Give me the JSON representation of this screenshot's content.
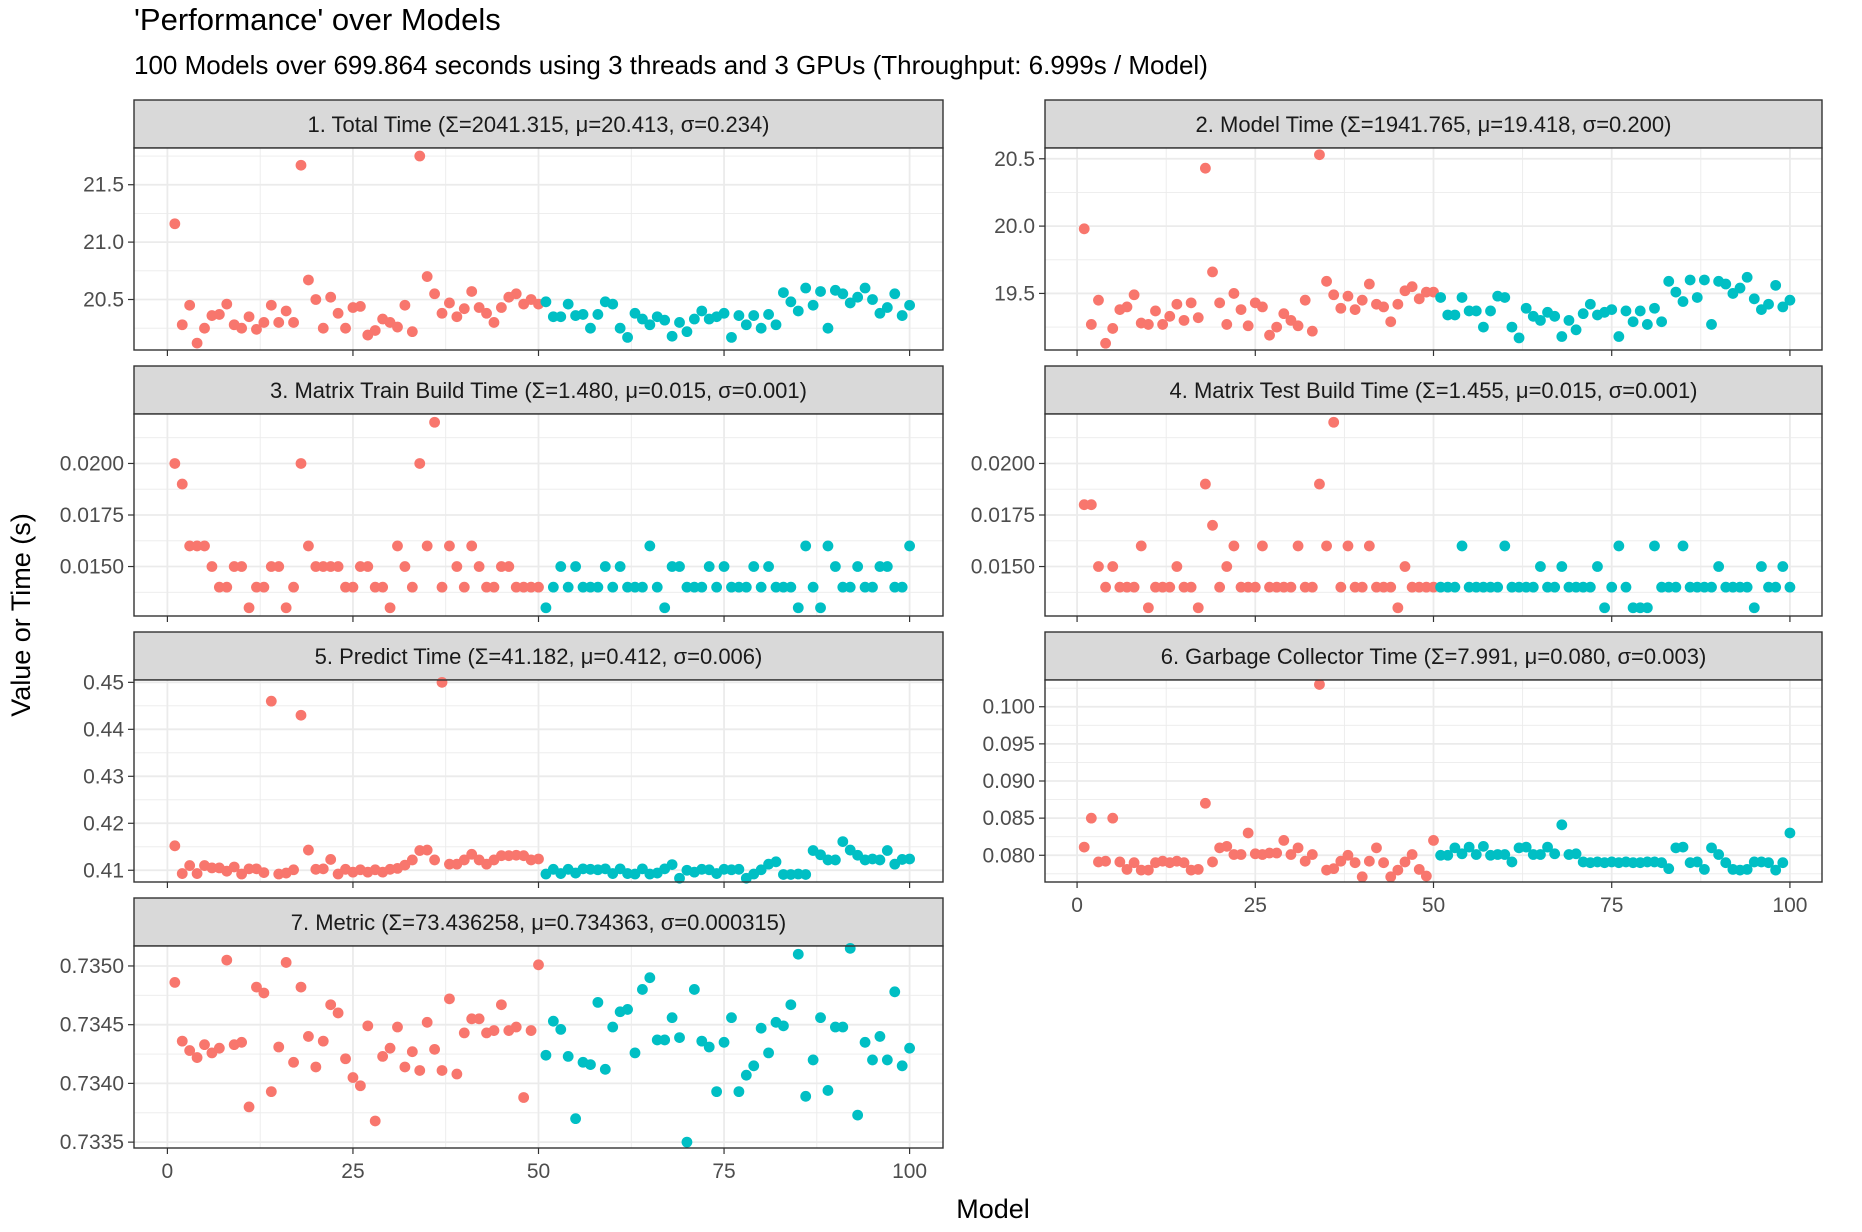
{
  "title": "'Performance' over Models",
  "subtitle": "100 Models over 699.864 seconds using 3 threads and 3 GPUs (Throughput: 6.999s / Model)",
  "x_axis_title": "Model",
  "y_axis_title": "Value or Time (s)",
  "colors": {
    "series_a": "#F8766D",
    "series_b": "#00BFC4",
    "strip_fill": "#D9D9D9",
    "grid": "#EBEBEB",
    "border": "#333333"
  },
  "chart_data": [
    {
      "type": "scatter",
      "title": "1. Total Time (Σ=2041.315, μ=20.413, σ=0.234)",
      "xlim": [
        -4.5,
        104.5
      ],
      "ylim": [
        20.06,
        21.82
      ],
      "x_ticks": [
        0,
        25,
        50,
        75,
        100
      ],
      "x_tick_labels": [
        "",
        "",
        "",
        "",
        ""
      ],
      "y_ticks": [
        20.5,
        21.0,
        21.5
      ],
      "y_tick_labels": [
        "20.5",
        "21.0",
        "21.5"
      ],
      "series": [
        {
          "values": [
            21.16,
            20.28,
            20.45,
            20.12,
            20.25,
            20.36,
            20.37,
            20.46,
            20.28,
            20.25,
            20.35,
            20.24,
            20.3,
            20.45,
            20.3,
            20.4,
            20.3,
            21.67,
            20.67,
            20.5,
            20.25,
            20.52,
            20.38,
            20.25,
            20.43,
            20.44,
            20.19,
            20.23,
            20.33,
            20.3,
            20.26,
            20.45,
            20.22,
            21.75,
            20.7,
            20.55,
            20.38,
            20.47,
            20.35,
            20.42,
            20.57,
            20.43,
            20.38,
            20.3,
            20.43,
            20.52,
            20.55,
            20.46,
            20.5,
            20.46
          ]
        },
        {
          "values": [
            20.48,
            20.35,
            20.35,
            20.46,
            20.36,
            20.37,
            20.25,
            20.37,
            20.48,
            20.46,
            20.25,
            20.17,
            20.38,
            20.33,
            20.28,
            20.35,
            20.32,
            20.18,
            20.3,
            20.22,
            20.33,
            20.4,
            20.33,
            20.35,
            20.38,
            20.17,
            20.36,
            20.28,
            20.36,
            20.25,
            20.37,
            20.28,
            20.56,
            20.48,
            20.4,
            20.6,
            20.45,
            20.57,
            20.25,
            20.58,
            20.55,
            20.47,
            20.52,
            20.6,
            20.5,
            20.38,
            20.43,
            20.55,
            20.36,
            20.45
          ]
        }
      ]
    },
    {
      "type": "scatter",
      "title": "2. Model Time (Σ=1941.765, μ=19.418, σ=0.200)",
      "xlim": [
        -4.5,
        104.5
      ],
      "ylim": [
        19.08,
        20.58
      ],
      "x_ticks": [
        0,
        25,
        50,
        75,
        100
      ],
      "x_tick_labels": [
        "0",
        "25",
        "50",
        "75",
        "100"
      ],
      "y_ticks": [
        19.5,
        20.0,
        20.5
      ],
      "y_tick_labels": [
        "19.5",
        "20.0",
        "20.5"
      ],
      "series": [
        {
          "values": [
            19.98,
            19.27,
            19.45,
            19.13,
            19.24,
            19.38,
            19.4,
            19.49,
            19.28,
            19.27,
            19.37,
            19.27,
            19.33,
            19.42,
            19.3,
            19.43,
            19.32,
            20.43,
            19.66,
            19.43,
            19.27,
            19.5,
            19.38,
            19.26,
            19.43,
            19.4,
            19.19,
            19.25,
            19.35,
            19.3,
            19.26,
            19.45,
            19.22,
            20.53,
            19.59,
            19.49,
            19.39,
            19.48,
            19.38,
            19.45,
            19.57,
            19.42,
            19.4,
            19.29,
            19.42,
            19.52,
            19.55,
            19.46,
            19.51,
            19.51
          ]
        },
        {
          "values": [
            19.47,
            19.34,
            19.34,
            19.47,
            19.37,
            19.37,
            19.25,
            19.37,
            19.48,
            19.47,
            19.25,
            19.17,
            19.39,
            19.33,
            19.3,
            19.36,
            19.33,
            19.18,
            19.3,
            19.23,
            19.35,
            19.42,
            19.34,
            19.36,
            19.38,
            19.18,
            19.37,
            19.29,
            19.37,
            19.27,
            19.39,
            19.29,
            19.59,
            19.51,
            19.44,
            19.6,
            19.47,
            19.6,
            19.27,
            19.59,
            19.57,
            19.5,
            19.54,
            19.62,
            19.46,
            19.38,
            19.42,
            19.56,
            19.4,
            19.45
          ]
        }
      ]
    },
    {
      "type": "scatter",
      "title": "3. Matrix Train Build Time (Σ=1.480, μ=0.015, σ=0.001)",
      "xlim": [
        -4.5,
        104.5
      ],
      "ylim": [
        0.0126,
        0.0224
      ],
      "x_ticks": [
        0,
        25,
        50,
        75,
        100
      ],
      "x_tick_labels": [
        "",
        "",
        "",
        "",
        ""
      ],
      "y_ticks": [
        0.015,
        0.0175,
        0.02
      ],
      "y_tick_labels": [
        "0.0150",
        "0.0175",
        "0.0200"
      ],
      "series": [
        {
          "values": [
            0.02,
            0.019,
            0.016,
            0.016,
            0.016,
            0.015,
            0.014,
            0.014,
            0.015,
            0.015,
            0.013,
            0.014,
            0.014,
            0.015,
            0.015,
            0.013,
            0.014,
            0.02,
            0.016,
            0.015,
            0.015,
            0.015,
            0.015,
            0.014,
            0.014,
            0.015,
            0.015,
            0.014,
            0.014,
            0.013,
            0.016,
            0.015,
            0.014,
            0.02,
            0.016,
            0.022,
            0.014,
            0.016,
            0.015,
            0.014,
            0.016,
            0.015,
            0.014,
            0.014,
            0.015,
            0.015,
            0.014,
            0.014,
            0.014,
            0.014
          ]
        },
        {
          "values": [
            0.013,
            0.014,
            0.015,
            0.014,
            0.015,
            0.014,
            0.014,
            0.014,
            0.015,
            0.014,
            0.015,
            0.014,
            0.014,
            0.014,
            0.016,
            0.014,
            0.013,
            0.015,
            0.015,
            0.014,
            0.014,
            0.014,
            0.015,
            0.014,
            0.015,
            0.014,
            0.014,
            0.014,
            0.015,
            0.014,
            0.015,
            0.014,
            0.014,
            0.014,
            0.013,
            0.016,
            0.014,
            0.013,
            0.016,
            0.015,
            0.014,
            0.014,
            0.015,
            0.014,
            0.014,
            0.015,
            0.015,
            0.014,
            0.014,
            0.016
          ]
        }
      ]
    },
    {
      "type": "scatter",
      "title": "4. Matrix Test Build Time (Σ=1.455, μ=0.015, σ=0.001)",
      "xlim": [
        -4.5,
        104.5
      ],
      "ylim": [
        0.0126,
        0.0224
      ],
      "x_ticks": [
        0,
        25,
        50,
        75,
        100
      ],
      "x_tick_labels": [
        "",
        "",
        "",
        "",
        ""
      ],
      "y_ticks": [
        0.015,
        0.0175,
        0.02
      ],
      "y_tick_labels": [
        "0.0150",
        "0.0175",
        "0.0200"
      ],
      "series": [
        {
          "values": [
            0.018,
            0.018,
            0.015,
            0.014,
            0.015,
            0.014,
            0.014,
            0.014,
            0.016,
            0.013,
            0.014,
            0.014,
            0.014,
            0.015,
            0.014,
            0.014,
            0.013,
            0.019,
            0.017,
            0.014,
            0.015,
            0.016,
            0.014,
            0.014,
            0.014,
            0.016,
            0.014,
            0.014,
            0.014,
            0.014,
            0.016,
            0.014,
            0.014,
            0.019,
            0.016,
            0.022,
            0.014,
            0.016,
            0.014,
            0.014,
            0.016,
            0.014,
            0.014,
            0.014,
            0.013,
            0.015,
            0.014,
            0.014,
            0.014,
            0.014
          ]
        },
        {
          "values": [
            0.014,
            0.014,
            0.014,
            0.016,
            0.014,
            0.014,
            0.014,
            0.014,
            0.014,
            0.016,
            0.014,
            0.014,
            0.014,
            0.014,
            0.015,
            0.014,
            0.014,
            0.015,
            0.014,
            0.014,
            0.014,
            0.014,
            0.015,
            0.013,
            0.014,
            0.016,
            0.014,
            0.013,
            0.013,
            0.013,
            0.016,
            0.014,
            0.014,
            0.014,
            0.016,
            0.014,
            0.014,
            0.014,
            0.014,
            0.015,
            0.014,
            0.014,
            0.014,
            0.014,
            0.013,
            0.015,
            0.014,
            0.014,
            0.015,
            0.014
          ]
        }
      ]
    },
    {
      "type": "scatter",
      "title": "5. Predict Time (Σ=41.182, μ=0.412, σ=0.006)",
      "xlim": [
        -4.5,
        104.5
      ],
      "ylim": [
        0.4075,
        0.4505
      ],
      "x_ticks": [
        0,
        25,
        50,
        75,
        100
      ],
      "x_tick_labels": [
        "",
        "",
        "",
        "",
        ""
      ],
      "y_ticks": [
        0.41,
        0.42,
        0.43,
        0.44,
        0.45
      ],
      "y_tick_labels": [
        "0.41",
        "0.42",
        "0.43",
        "0.44",
        "0.45"
      ],
      "series": [
        {
          "values": [
            0.4152,
            0.4093,
            0.411,
            0.4093,
            0.411,
            0.4105,
            0.4105,
            0.4098,
            0.4107,
            0.4092,
            0.4103,
            0.4103,
            0.4095,
            0.446,
            0.4092,
            0.4094,
            0.4101,
            0.443,
            0.4143,
            0.4102,
            0.4103,
            0.4123,
            0.4092,
            0.4102,
            0.4096,
            0.4101,
            0.4096,
            0.4101,
            0.4096,
            0.4102,
            0.4104,
            0.4111,
            0.4122,
            0.4142,
            0.4143,
            0.4122,
            0.45,
            0.4113,
            0.4113,
            0.4122,
            0.4134,
            0.4122,
            0.4113,
            0.4122,
            0.4131,
            0.4131,
            0.4132,
            0.4131,
            0.4122,
            0.4124
          ]
        },
        {
          "values": [
            0.4092,
            0.4102,
            0.4093,
            0.4102,
            0.4094,
            0.4103,
            0.4102,
            0.4101,
            0.4103,
            0.4093,
            0.4103,
            0.4093,
            0.4092,
            0.4103,
            0.4092,
            0.4094,
            0.4103,
            0.4112,
            0.4083,
            0.41,
            0.4096,
            0.4102,
            0.4101,
            0.4093,
            0.4102,
            0.4101,
            0.4102,
            0.4083,
            0.4092,
            0.4101,
            0.4113,
            0.4118,
            0.4091,
            0.4091,
            0.4092,
            0.4091,
            0.4142,
            0.4133,
            0.4122,
            0.4122,
            0.4161,
            0.4143,
            0.4132,
            0.4122,
            0.4124,
            0.4122,
            0.4142,
            0.4113,
            0.4123,
            0.4124
          ]
        }
      ]
    },
    {
      "type": "scatter",
      "title": "6. Garbage Collector Time (Σ=7.991, μ=0.080, σ=0.003)",
      "xlim": [
        -4.5,
        104.5
      ],
      "ylim": [
        0.0764,
        0.1036
      ],
      "x_ticks": [
        0,
        25,
        50,
        75,
        100
      ],
      "x_tick_labels": [
        "0",
        "25",
        "50",
        "75",
        "100"
      ],
      "y_ticks": [
        0.08,
        0.085,
        0.09,
        0.095,
        0.1
      ],
      "y_tick_labels": [
        "0.080",
        "0.085",
        "0.090",
        "0.095",
        "0.100"
      ],
      "series": [
        {
          "values": [
            0.0811,
            0.085,
            0.0791,
            0.0792,
            0.085,
            0.0791,
            0.0781,
            0.079,
            0.078,
            0.078,
            0.079,
            0.0792,
            0.079,
            0.0792,
            0.079,
            0.078,
            0.0781,
            0.087,
            0.0791,
            0.081,
            0.0812,
            0.0801,
            0.0801,
            0.083,
            0.0802,
            0.0801,
            0.0803,
            0.0803,
            0.082,
            0.0801,
            0.081,
            0.0792,
            0.0801,
            0.103,
            0.078,
            0.0782,
            0.0792,
            0.08,
            0.079,
            0.0771,
            0.0792,
            0.081,
            0.079,
            0.0771,
            0.078,
            0.0791,
            0.0801,
            0.0781,
            0.0772,
            0.082
          ]
        },
        {
          "values": [
            0.08,
            0.08,
            0.081,
            0.0802,
            0.0811,
            0.0801,
            0.0812,
            0.08,
            0.0801,
            0.0801,
            0.0791,
            0.081,
            0.0811,
            0.0801,
            0.0801,
            0.0811,
            0.0802,
            0.0841,
            0.0801,
            0.0802,
            0.0791,
            0.079,
            0.0791,
            0.079,
            0.0791,
            0.079,
            0.0791,
            0.079,
            0.079,
            0.0791,
            0.0791,
            0.079,
            0.0782,
            0.081,
            0.0811,
            0.079,
            0.0791,
            0.0781,
            0.081,
            0.0801,
            0.079,
            0.0781,
            0.078,
            0.0781,
            0.0791,
            0.0791,
            0.079,
            0.078,
            0.079,
            0.083
          ]
        }
      ]
    },
    {
      "type": "scatter",
      "title": "7. Metric (Σ=73.436258, μ=0.734363, σ=0.000315)",
      "xlim": [
        -4.5,
        104.5
      ],
      "ylim": [
        0.73345,
        0.73517
      ],
      "x_ticks": [
        0,
        25,
        50,
        75,
        100
      ],
      "x_tick_labels": [
        "0",
        "25",
        "50",
        "75",
        "100"
      ],
      "y_ticks": [
        0.7335,
        0.734,
        0.7345,
        0.735
      ],
      "y_tick_labels": [
        "0.7335",
        "0.7340",
        "0.7345",
        "0.7350"
      ],
      "series": [
        {
          "values": [
            0.73486,
            0.73436,
            0.73428,
            0.73422,
            0.73433,
            0.73426,
            0.7343,
            0.73505,
            0.73433,
            0.73435,
            0.7338,
            0.73482,
            0.73477,
            0.73393,
            0.73431,
            0.73503,
            0.73418,
            0.73482,
            0.7344,
            0.73414,
            0.73436,
            0.73467,
            0.7346,
            0.73421,
            0.73405,
            0.73398,
            0.73449,
            0.73368,
            0.73423,
            0.7343,
            0.73448,
            0.73414,
            0.73427,
            0.73411,
            0.73452,
            0.73429,
            0.73411,
            0.73472,
            0.73408,
            0.73443,
            0.73455,
            0.73455,
            0.73443,
            0.73445,
            0.73467,
            0.73445,
            0.73448,
            0.73388,
            0.73445,
            0.73501
          ]
        },
        {
          "values": [
            0.73424,
            0.73453,
            0.73446,
            0.73423,
            0.7337,
            0.73418,
            0.73416,
            0.73469,
            0.73412,
            0.73448,
            0.73461,
            0.73463,
            0.73426,
            0.7348,
            0.7349,
            0.73437,
            0.73437,
            0.73456,
            0.73439,
            0.7335,
            0.7348,
            0.73436,
            0.73431,
            0.73393,
            0.73435,
            0.73456,
            0.73393,
            0.73407,
            0.73415,
            0.73447,
            0.73426,
            0.73452,
            0.73449,
            0.73467,
            0.7351,
            0.73389,
            0.7342,
            0.73456,
            0.73394,
            0.73448,
            0.73448,
            0.73515,
            0.73373,
            0.73435,
            0.7342,
            0.7344,
            0.7342,
            0.73478,
            0.73415,
            0.7343
          ]
        }
      ]
    }
  ]
}
